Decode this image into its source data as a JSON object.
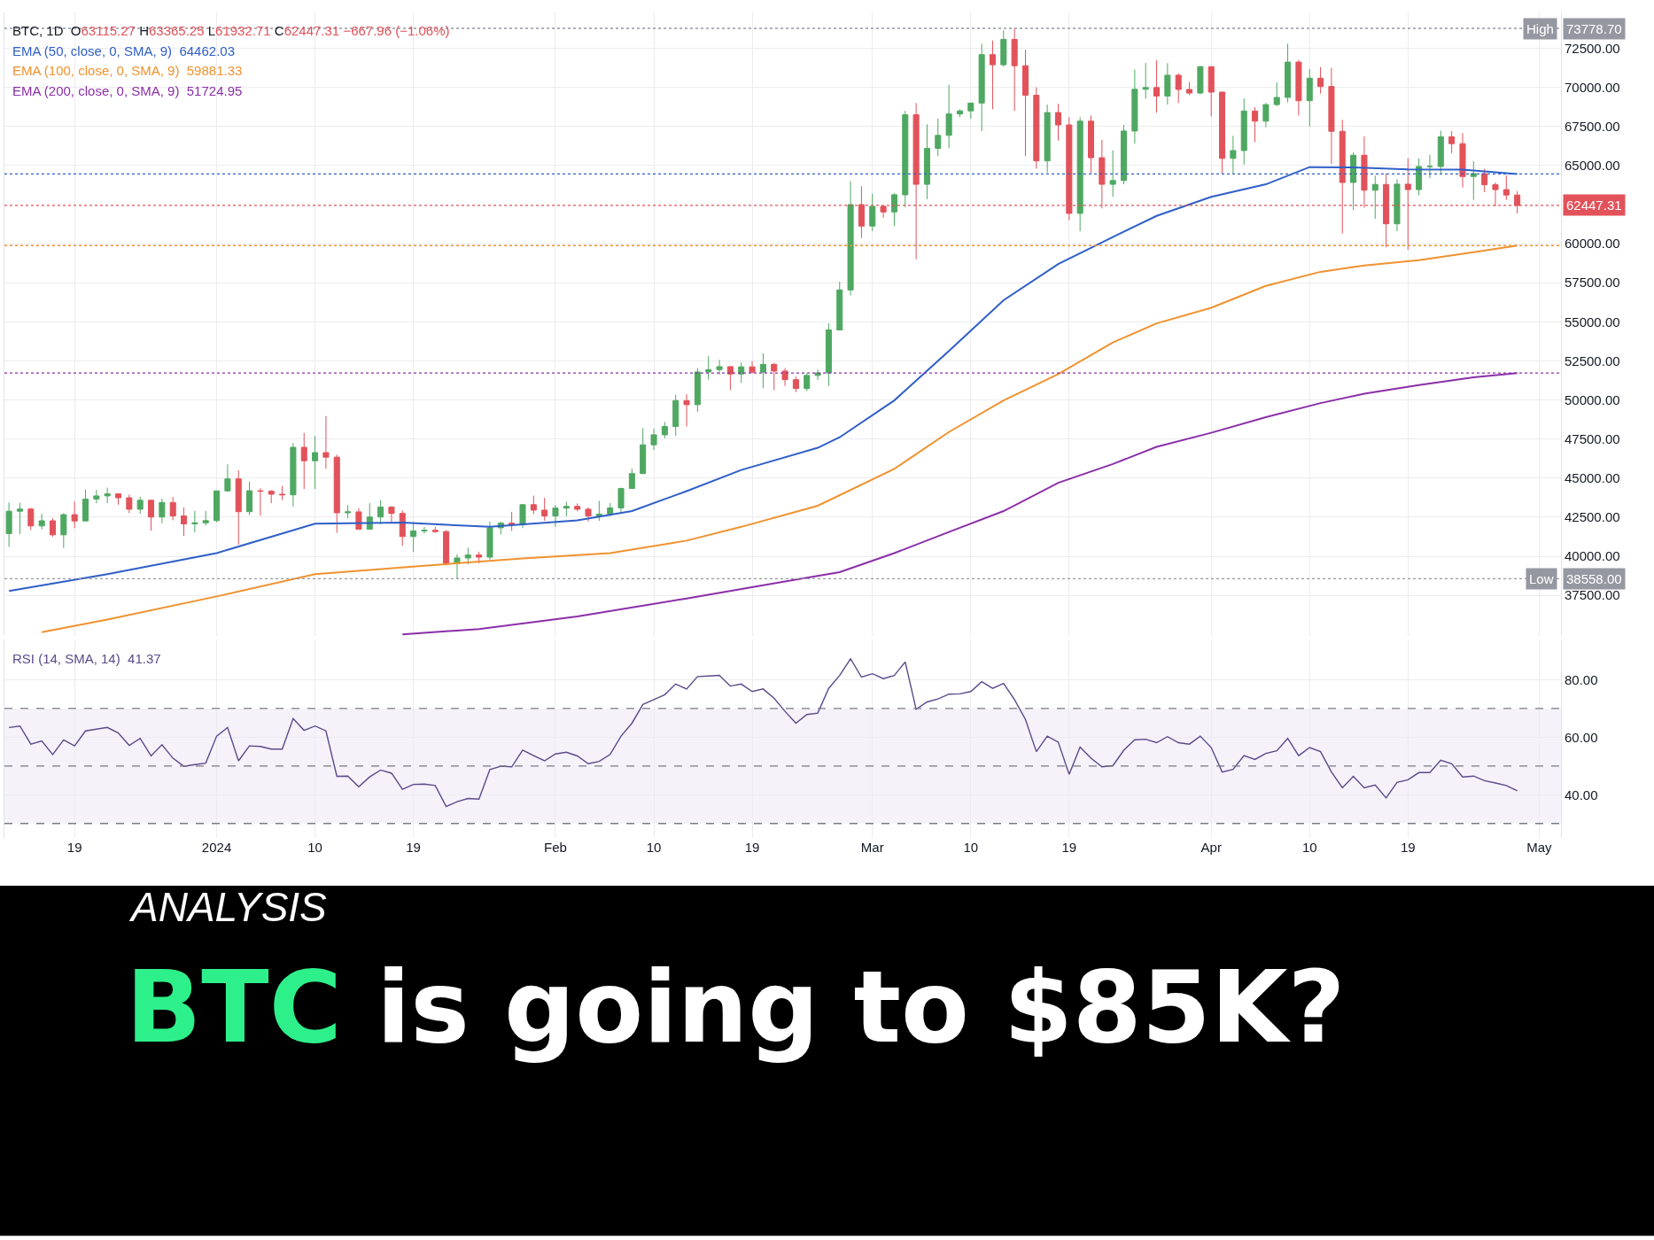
{
  "chart_data": [
    {
      "type": "candlestick",
      "x": [
        "2023-12-13",
        "2023-12-14",
        "2023-12-15",
        "2023-12-16",
        "2023-12-17",
        "2023-12-18",
        "2023-12-19",
        "2023-12-20",
        "2023-12-21",
        "2023-12-22",
        "2023-12-23",
        "2023-12-24",
        "2023-12-25",
        "2023-12-26",
        "2023-12-27",
        "2023-12-28",
        "2023-12-29",
        "2023-12-30",
        "2023-12-31",
        "2024-01-01",
        "2024-01-02",
        "2024-01-03",
        "2024-01-04",
        "2024-01-05",
        "2024-01-06",
        "2024-01-07",
        "2024-01-08",
        "2024-01-09",
        "2024-01-10",
        "2024-01-11",
        "2024-01-12",
        "2024-01-13",
        "2024-01-14",
        "2024-01-15",
        "2024-01-16",
        "2024-01-17",
        "2024-01-18",
        "2024-01-19",
        "2024-01-20",
        "2024-01-21",
        "2024-01-22",
        "2024-01-23",
        "2024-01-24",
        "2024-01-25",
        "2024-01-26",
        "2024-01-27",
        "2024-01-28",
        "2024-01-29",
        "2024-01-30",
        "2024-01-31",
        "2024-02-01",
        "2024-02-02",
        "2024-02-03",
        "2024-02-04",
        "2024-02-05",
        "2024-02-06",
        "2024-02-07",
        "2024-02-08",
        "2024-02-09",
        "2024-02-10",
        "2024-02-11",
        "2024-02-12",
        "2024-02-13",
        "2024-02-14",
        "2024-02-15",
        "2024-02-16",
        "2024-02-17",
        "2024-02-18",
        "2024-02-19",
        "2024-02-20",
        "2024-02-21",
        "2024-02-22",
        "2024-02-23",
        "2024-02-24",
        "2024-02-25",
        "2024-02-26",
        "2024-02-27",
        "2024-02-28",
        "2024-02-29",
        "2024-03-01",
        "2024-03-02",
        "2024-03-03",
        "2024-03-04",
        "2024-03-05",
        "2024-03-06",
        "2024-03-07",
        "2024-03-08",
        "2024-03-09",
        "2024-03-10",
        "2024-03-11",
        "2024-03-12",
        "2024-03-13",
        "2024-03-14",
        "2024-03-15",
        "2024-03-16",
        "2024-03-17",
        "2024-03-18",
        "2024-03-19",
        "2024-03-20",
        "2024-03-21",
        "2024-03-22",
        "2024-03-23",
        "2024-03-24",
        "2024-03-25",
        "2024-03-26",
        "2024-03-27",
        "2024-03-28",
        "2024-03-29",
        "2024-03-30",
        "2024-03-31",
        "2024-04-01",
        "2024-04-02",
        "2024-04-03",
        "2024-04-04",
        "2024-04-05",
        "2024-04-06",
        "2024-04-07",
        "2024-04-08",
        "2024-04-09",
        "2024-04-10",
        "2024-04-11",
        "2024-04-12",
        "2024-04-13",
        "2024-04-14",
        "2024-04-15",
        "2024-04-16",
        "2024-04-17",
        "2024-04-18",
        "2024-04-19",
        "2024-04-20",
        "2024-04-21",
        "2024-04-22",
        "2024-04-23",
        "2024-04-24",
        "2024-04-25",
        "2024-04-26",
        "2024-04-27",
        "2024-04-28",
        "2024-04-29"
      ],
      "series": [
        {
          "type": "candlestick",
          "name": "BTC, 1D",
          "ohlc": [
            [
              41450,
              43430,
              40600,
              42880
            ],
            [
              42880,
              43420,
              41420,
              43020
            ],
            [
              43020,
              43090,
              41670,
              41940
            ],
            [
              41940,
              42720,
              41720,
              42270
            ],
            [
              42270,
              42430,
              41250,
              41370
            ],
            [
              41370,
              42760,
              40530,
              42660
            ],
            [
              42660,
              43500,
              41800,
              42260
            ],
            [
              42260,
              44280,
              42220,
              43660
            ],
            [
              43660,
              44240,
              43390,
              43860
            ],
            [
              43860,
              44390,
              43400,
              43990
            ],
            [
              43990,
              44030,
              43300,
              43740
            ],
            [
              43740,
              43950,
              42760,
              43010
            ],
            [
              43010,
              43800,
              42720,
              43580
            ],
            [
              43580,
              43600,
              41640,
              42510
            ],
            [
              42510,
              43680,
              42100,
              43440
            ],
            [
              43440,
              43800,
              42300,
              42580
            ],
            [
              42580,
              43120,
              41300,
              42070
            ],
            [
              42070,
              42900,
              41520,
              42140
            ],
            [
              42140,
              42900,
              41960,
              42280
            ],
            [
              42280,
              44180,
              42180,
              44180
            ],
            [
              44180,
              45880,
              44150,
              44950
            ],
            [
              44950,
              45500,
              40750,
              42850
            ],
            [
              42850,
              44770,
              42630,
              44190
            ],
            [
              44190,
              44350,
              42600,
              44160
            ],
            [
              44160,
              44230,
              43400,
              43970
            ],
            [
              43970,
              44500,
              43600,
              43930
            ],
            [
              43930,
              47250,
              43180,
              46970
            ],
            [
              46970,
              47900,
              44300,
              46110
            ],
            [
              46110,
              47700,
              44300,
              46630
            ],
            [
              46630,
              48970,
              45600,
              46340
            ],
            [
              46340,
              46500,
              41500,
              42780
            ],
            [
              42780,
              43260,
              42440,
              42840
            ],
            [
              42840,
              43080,
              41720,
              41730
            ],
            [
              41730,
              43400,
              41720,
              42510
            ],
            [
              42510,
              43580,
              42050,
              43150
            ],
            [
              43150,
              43200,
              42200,
              42740
            ],
            [
              42740,
              42930,
              40680,
              41260
            ],
            [
              41260,
              42200,
              40280,
              41620
            ],
            [
              41620,
              41870,
              41450,
              41660
            ],
            [
              41660,
              41880,
              41500,
              41580
            ],
            [
              41580,
              41670,
              39400,
              39530
            ],
            [
              39530,
              40130,
              38558.0,
              39890
            ],
            [
              39890,
              40550,
              39480,
              40080
            ],
            [
              40080,
              40290,
              39550,
              39940
            ],
            [
              39940,
              42220,
              39780,
              41820
            ],
            [
              41820,
              42200,
              41400,
              42120
            ],
            [
              42120,
              42840,
              41620,
              42030
            ],
            [
              42030,
              43300,
              41800,
              43300
            ],
            [
              43300,
              43880,
              42680,
              42950
            ],
            [
              42950,
              43740,
              42270,
              42580
            ],
            [
              42580,
              43280,
              41880,
              43080
            ],
            [
              43080,
              43490,
              42560,
              43190
            ],
            [
              43190,
              43380,
              42880,
              43010
            ],
            [
              43010,
              43120,
              42220,
              42580
            ],
            [
              42580,
              43540,
              42260,
              42700
            ],
            [
              42700,
              43400,
              42570,
              43090
            ],
            [
              43090,
              44380,
              42780,
              44340
            ],
            [
              44340,
              45600,
              44330,
              45290
            ],
            [
              45290,
              48200,
              45250,
              47130
            ],
            [
              47130,
              48170,
              46800,
              47770
            ],
            [
              47770,
              48590,
              47550,
              48300
            ],
            [
              48300,
              50330,
              47700,
              49960
            ],
            [
              49960,
              50370,
              48300,
              49700
            ],
            [
              49700,
              52040,
              49250,
              51790
            ],
            [
              51790,
              52820,
              51300,
              51940
            ],
            [
              51940,
              52570,
              51620,
              52130
            ],
            [
              52130,
              52160,
              50630,
              51660
            ],
            [
              51660,
              52400,
              51100,
              52120
            ],
            [
              52120,
              52480,
              51700,
              51780
            ],
            [
              51780,
              52980,
              50750,
              52280
            ],
            [
              52280,
              52370,
              50630,
              51850
            ],
            [
              51850,
              52040,
              50900,
              51300
            ],
            [
              51300,
              51500,
              50500,
              50730
            ],
            [
              50730,
              51700,
              50570,
              51570
            ],
            [
              51570,
              51950,
              51280,
              51730
            ],
            [
              51730,
              54900,
              50900,
              54480
            ],
            [
              54480,
              57570,
              54450,
              57040
            ],
            [
              57040,
              64000,
              56700,
              62500
            ],
            [
              62500,
              63680,
              60360,
              61130
            ],
            [
              61130,
              63200,
              60800,
              62390
            ],
            [
              62390,
              62450,
              61650,
              62030
            ],
            [
              62030,
              63230,
              61130,
              63130
            ],
            [
              63130,
              68500,
              62330,
              68250
            ],
            [
              68250,
              69000,
              59000,
              63800
            ],
            [
              63800,
              67640,
              62850,
              66100
            ],
            [
              66100,
              68000,
              65600,
              66930
            ],
            [
              66930,
              70170,
              66100,
              68300
            ],
            [
              68300,
              68600,
              68100,
              68500
            ],
            [
              68500,
              69000,
              68000,
              69000
            ],
            [
              69000,
              72800,
              67200,
              72100
            ],
            [
              72100,
              73000,
              68600,
              71450
            ],
            [
              71450,
              73650,
              71330,
              73070
            ],
            [
              73070,
              73778.7,
              68500,
              71390
            ],
            [
              71390,
              72400,
              65600,
              69500
            ],
            [
              69500,
              70000,
              64800,
              65300
            ],
            [
              65300,
              68900,
              64550,
              68390
            ],
            [
              68390,
              68950,
              66600,
              67600
            ],
            [
              67600,
              68100,
              61500,
              61940
            ],
            [
              61940,
              68100,
              60800,
              67840
            ],
            [
              67840,
              68200,
              64500,
              65500
            ],
            [
              65500,
              66650,
              62260,
              63800
            ],
            [
              63800,
              65980,
              63000,
              64040
            ],
            [
              64040,
              67600,
              63800,
              67210
            ],
            [
              67210,
              71150,
              66400,
              69880
            ],
            [
              69880,
              71560,
              69280,
              69990
            ],
            [
              69990,
              71730,
              68380,
              69450
            ],
            [
              69450,
              71550,
              68900,
              70780
            ],
            [
              70780,
              70900,
              69000,
              69870
            ],
            [
              69870,
              70350,
              69500,
              69640
            ],
            [
              69640,
              71370,
              69560,
              71330
            ],
            [
              71330,
              71330,
              68150,
              69700
            ],
            [
              69700,
              69700,
              64500,
              65460
            ],
            [
              65460,
              66900,
              64500,
              65960
            ],
            [
              65960,
              69300,
              65060,
              68490
            ],
            [
              68490,
              68730,
              66500,
              67840
            ],
            [
              67840,
              69000,
              67450,
              68900
            ],
            [
              68900,
              70320,
              68800,
              69360
            ],
            [
              69360,
              72800,
              69040,
              71620
            ],
            [
              71620,
              71760,
              68200,
              69150
            ],
            [
              69150,
              71170,
              67500,
              70590
            ],
            [
              70590,
              71300,
              69600,
              70060
            ],
            [
              70060,
              71250,
              65100,
              67190
            ],
            [
              67190,
              67930,
              60660,
              63920
            ],
            [
              63920,
              65840,
              62150,
              65660
            ],
            [
              65660,
              66870,
              62300,
              63420
            ],
            [
              63420,
              64360,
              61600,
              63790
            ],
            [
              63790,
              64480,
              59770,
              61270
            ],
            [
              61270,
              64130,
              60800,
              63810
            ],
            [
              63810,
              65480,
              59600,
              63460
            ],
            [
              63460,
              65450,
              63100,
              64940
            ],
            [
              64940,
              65700,
              64200,
              64940
            ],
            [
              64940,
              67230,
              64500,
              66840
            ],
            [
              66840,
              67200,
              65800,
              66400
            ],
            [
              66400,
              67070,
              63600,
              64300
            ],
            [
              64300,
              65290,
              62800,
              64480
            ],
            [
              64480,
              64800,
              63300,
              63770
            ],
            [
              63770,
              63920,
              62400,
              63460
            ],
            [
              63460,
              64370,
              62800,
              63115.27
            ],
            [
              63115.27,
              63365.25,
              61932.71,
              62447.31
            ]
          ]
        },
        {
          "type": "line",
          "name": "EMA (50, close, 0, SMA, 9)",
          "color": "#2f5fc8",
          "x": [
            "2023-12-13",
            "2023-12-22",
            "2024-01-01",
            "2024-01-10",
            "2024-01-18",
            "2024-01-26",
            "2024-02-03",
            "2024-02-08",
            "2024-02-13",
            "2024-02-18",
            "2024-02-25",
            "2024-02-27",
            "2024-03-03",
            "2024-03-08",
            "2024-03-13",
            "2024-03-18",
            "2024-03-23",
            "2024-03-27",
            "2024-04-01",
            "2024-04-06",
            "2024-04-10",
            "2024-04-14",
            "2024-04-19",
            "2024-04-24",
            "2024-04-29"
          ],
          "values": [
            37770,
            38850,
            40200,
            42080,
            42150,
            41880,
            42290,
            42890,
            44170,
            45520,
            46940,
            47610,
            49970,
            53140,
            56380,
            58700,
            60430,
            61780,
            63000,
            63800,
            64900,
            64880,
            64750,
            64740,
            64460
          ]
        },
        {
          "type": "line",
          "name": "EMA (100, close, 0, SMA, 9)",
          "color": "#f0922f",
          "x": [
            "2023-12-16",
            "2023-12-22",
            "2024-01-01",
            "2024-01-10",
            "2024-01-20",
            "2024-01-29",
            "2024-02-06",
            "2024-02-13",
            "2024-02-18",
            "2024-02-25",
            "2024-03-03",
            "2024-03-08",
            "2024-03-13",
            "2024-03-18",
            "2024-03-23",
            "2024-03-27",
            "2024-04-01",
            "2024-04-06",
            "2024-04-11",
            "2024-04-15",
            "2024-04-20",
            "2024-04-25",
            "2024-04-29"
          ],
          "values": [
            35140,
            35950,
            37430,
            38850,
            39390,
            39860,
            40200,
            41000,
            41880,
            43230,
            45590,
            47950,
            49970,
            51660,
            53680,
            54900,
            55900,
            57300,
            58200,
            58600,
            58950,
            59450,
            59880
          ]
        },
        {
          "type": "line",
          "name": "EMA (200, close, 0, SMA, 9)",
          "color": "#8b2fa8",
          "x": [
            "2024-01-18",
            "2024-01-25",
            "2024-02-03",
            "2024-02-13",
            "2024-02-22",
            "2024-02-27",
            "2024-03-03",
            "2024-03-08",
            "2024-03-13",
            "2024-03-18",
            "2024-03-23",
            "2024-03-27",
            "2024-04-01",
            "2024-04-06",
            "2024-04-11",
            "2024-04-15",
            "2024-04-20",
            "2024-04-25",
            "2024-04-29"
          ],
          "values": [
            35000,
            35340,
            36150,
            37300,
            38380,
            38980,
            40200,
            41550,
            42890,
            44700,
            45900,
            47000,
            47900,
            48900,
            49800,
            50400,
            50950,
            51450,
            51720
          ]
        }
      ],
      "xlim": [
        "2023-12-12T14:00",
        "2024-05-03"
      ],
      "xticks": [
        {
          "value": "2023-12-19",
          "label": null
        },
        {
          "value": "2024-01-01",
          "label": null
        },
        {
          "value": "2024-01-10",
          "label": null
        },
        {
          "value": "2024-01-19",
          "label": null
        },
        {
          "value": "2024-02-01",
          "label": null
        },
        {
          "value": "2024-02-10",
          "label": null
        },
        {
          "value": "2024-02-19",
          "label": null
        },
        {
          "value": "2024-03-01",
          "label": null
        },
        {
          "value": "2024-03-10",
          "label": null
        },
        {
          "value": "2024-03-19",
          "label": null
        },
        {
          "value": "2024-04-01",
          "label": null
        },
        {
          "value": "2024-04-10",
          "label": null
        },
        {
          "value": "2024-04-19",
          "label": null
        },
        {
          "value": "2024-05-01",
          "label": null
        }
      ],
      "ylim": [
        34900,
        74800
      ],
      "yticks": [
        {
          "value": 37500,
          "label": "37500.00"
        },
        {
          "value": 40000,
          "label": "40000.00"
        },
        {
          "value": 42500,
          "label": "42500.00"
        },
        {
          "value": 45000,
          "label": "45000.00"
        },
        {
          "value": 47500,
          "label": "47500.00"
        },
        {
          "value": 50000,
          "label": "50000.00"
        },
        {
          "value": 52500,
          "label": "52500.00"
        },
        {
          "value": 55000,
          "label": "55000.00"
        },
        {
          "value": 57500,
          "label": "57500.00"
        },
        {
          "value": 60000,
          "label": "60000.00"
        },
        {
          "value": 65000,
          "label": "65000.00"
        },
        {
          "value": 67500,
          "label": "67500.00"
        },
        {
          "value": 70000,
          "label": "70000.00"
        },
        {
          "value": 72500,
          "label": "72500.00"
        }
      ],
      "ref_lines": [
        {
          "axis": "y",
          "value": 73778.7,
          "label": "High 73778.70",
          "color": "#9598a1",
          "line_style": "dotted"
        },
        {
          "axis": "y",
          "value": 64462.03,
          "color": "#2f5fc8",
          "line_style": "dotted"
        },
        {
          "axis": "y",
          "value": 62447.31,
          "label": "62447.31",
          "color": "#e2525a",
          "line_style": "dotted"
        },
        {
          "axis": "y",
          "value": 59881.33,
          "color": "#f0922f",
          "line_style": "dotted"
        },
        {
          "axis": "y",
          "value": 51724.95,
          "color": "#8b2fa8",
          "line_style": "dotted"
        },
        {
          "axis": "y",
          "value": 38558.0,
          "label": "Low 38558.00",
          "color": "#9598a1",
          "line_style": "dotted"
        }
      ],
      "annotations": [
        "O63115.27 H63365.25 L61932.71 C62447.31 −667.96 (−1.06%)",
        "64462.03",
        "59881.33",
        "51724.95"
      ],
      "grid": true,
      "tick_labels": "y",
      "line_style": "solid"
    },
    {
      "type": "line",
      "x": [
        "2023-12-13",
        "2023-12-14",
        "2023-12-15",
        "2023-12-16",
        "2023-12-17",
        "2023-12-18",
        "2023-12-19",
        "2023-12-20",
        "2023-12-21",
        "2023-12-22",
        "2023-12-23",
        "2023-12-24",
        "2023-12-25",
        "2023-12-26",
        "2023-12-27",
        "2023-12-28",
        "2023-12-29",
        "2023-12-30",
        "2023-12-31",
        "2024-01-01",
        "2024-01-02",
        "2024-01-03",
        "2024-01-04",
        "2024-01-05",
        "2024-01-06",
        "2024-01-07",
        "2024-01-08",
        "2024-01-09",
        "2024-01-10",
        "2024-01-11",
        "2024-01-12",
        "2024-01-13",
        "2024-01-14",
        "2024-01-15",
        "2024-01-16",
        "2024-01-17",
        "2024-01-18",
        "2024-01-19",
        "2024-01-20",
        "2024-01-21",
        "2024-01-22",
        "2024-01-23",
        "2024-01-24",
        "2024-01-25",
        "2024-01-26",
        "2024-01-27",
        "2024-01-28",
        "2024-01-29",
        "2024-01-30",
        "2024-01-31",
        "2024-02-01",
        "2024-02-02",
        "2024-02-03",
        "2024-02-04",
        "2024-02-05",
        "2024-02-06",
        "2024-02-07",
        "2024-02-08",
        "2024-02-09",
        "2024-02-10",
        "2024-02-11",
        "2024-02-12",
        "2024-02-13",
        "2024-02-14",
        "2024-02-15",
        "2024-02-16",
        "2024-02-17",
        "2024-02-18",
        "2024-02-19",
        "2024-02-20",
        "2024-02-21",
        "2024-02-22",
        "2024-02-23",
        "2024-02-24",
        "2024-02-25",
        "2024-02-26",
        "2024-02-27",
        "2024-02-28",
        "2024-02-29",
        "2024-03-01",
        "2024-03-02",
        "2024-03-03",
        "2024-03-04",
        "2024-03-05",
        "2024-03-06",
        "2024-03-07",
        "2024-03-08",
        "2024-03-09",
        "2024-03-10",
        "2024-03-11",
        "2024-03-12",
        "2024-03-13",
        "2024-03-14",
        "2024-03-15",
        "2024-03-16",
        "2024-03-17",
        "2024-03-18",
        "2024-03-19",
        "2024-03-20",
        "2024-03-21",
        "2024-03-22",
        "2024-03-23",
        "2024-03-24",
        "2024-03-25",
        "2024-03-26",
        "2024-03-27",
        "2024-03-28",
        "2024-03-29",
        "2024-03-30",
        "2024-03-31",
        "2024-04-01",
        "2024-04-02",
        "2024-04-03",
        "2024-04-04",
        "2024-04-05",
        "2024-04-06",
        "2024-04-07",
        "2024-04-08",
        "2024-04-09",
        "2024-04-10",
        "2024-04-11",
        "2024-04-12",
        "2024-04-13",
        "2024-04-14",
        "2024-04-15",
        "2024-04-16",
        "2024-04-17",
        "2024-04-18",
        "2024-04-19",
        "2024-04-20",
        "2024-04-21",
        "2024-04-22",
        "2024-04-23",
        "2024-04-24",
        "2024-04-25",
        "2024-04-26",
        "2024-04-27",
        "2024-04-28",
        "2024-04-29"
      ],
      "series": [
        {
          "name": "RSI (14, SMA, 14)",
          "color": "#5b4a8a",
          "values": [
            63.4,
            63.9,
            57.6,
            58.7,
            54.0,
            59.1,
            57.0,
            62.2,
            62.8,
            63.4,
            61.5,
            57.2,
            59.6,
            53.5,
            57.4,
            52.7,
            49.9,
            50.5,
            51.0,
            60.4,
            63.4,
            51.8,
            57.0,
            56.8,
            55.9,
            55.9,
            66.5,
            62.4,
            63.9,
            62.2,
            46.4,
            46.5,
            42.8,
            46.2,
            48.6,
            47.5,
            41.9,
            43.6,
            43.7,
            43.2,
            35.9,
            37.6,
            38.7,
            38.5,
            48.8,
            49.9,
            49.7,
            55.5,
            53.6,
            51.8,
            54.2,
            54.8,
            53.5,
            50.8,
            51.6,
            54.0,
            60.4,
            64.9,
            71.4,
            73.1,
            74.8,
            78.5,
            76.8,
            81.1,
            81.3,
            81.5,
            77.8,
            78.5,
            75.9,
            76.8,
            73.6,
            69.0,
            64.9,
            67.9,
            68.4,
            77.0,
            81.5,
            87.3,
            80.9,
            82.1,
            80.4,
            81.5,
            86.2,
            69.7,
            72.3,
            73.3,
            75.0,
            75.1,
            75.9,
            79.3,
            77.0,
            78.7,
            73.1,
            66.2,
            55.0,
            60.4,
            58.3,
            47.1,
            56.6,
            52.7,
            49.7,
            50.1,
            55.5,
            59.1,
            59.3,
            58.1,
            60.2,
            58.1,
            57.6,
            60.4,
            56.4,
            47.9,
            48.8,
            53.6,
            52.3,
            54.4,
            55.3,
            59.6,
            53.6,
            56.4,
            55.0,
            47.9,
            42.4,
            46.4,
            42.4,
            43.4,
            38.9,
            44.3,
            45.2,
            47.7,
            47.7,
            52.0,
            50.8,
            46.2,
            46.5,
            44.9,
            44.1,
            43.2,
            41.4
          ]
        }
      ],
      "xlim": [
        "2023-12-12T14:00",
        "2024-05-03"
      ],
      "xticks": [
        {
          "value": "2023-12-19",
          "label": "19"
        },
        {
          "value": "2024-01-01",
          "label": "2024"
        },
        {
          "value": "2024-01-10",
          "label": "10"
        },
        {
          "value": "2024-01-19",
          "label": "19"
        },
        {
          "value": "2024-02-01",
          "label": "Feb"
        },
        {
          "value": "2024-02-10",
          "label": "10"
        },
        {
          "value": "2024-02-19",
          "label": "19"
        },
        {
          "value": "2024-03-01",
          "label": "Mar"
        },
        {
          "value": "2024-03-10",
          "label": "10"
        },
        {
          "value": "2024-03-19",
          "label": "19"
        },
        {
          "value": "2024-04-01",
          "label": "Apr"
        },
        {
          "value": "2024-04-10",
          "label": "10"
        },
        {
          "value": "2024-04-19",
          "label": "19"
        },
        {
          "value": "2024-05-01",
          "label": "May"
        }
      ],
      "ylim": [
        25,
        94
      ],
      "yticks": [
        {
          "value": 40,
          "label": "40.00"
        },
        {
          "value": 60,
          "label": "60.00"
        },
        {
          "value": 80,
          "label": "80.00"
        }
      ],
      "ref_lines": [
        {
          "axis": "y",
          "value": 70,
          "color": "#787b86",
          "line_style": "dashed"
        },
        {
          "axis": "y",
          "value": 50,
          "color": "#787b86",
          "line_style": "dashed"
        },
        {
          "axis": "y",
          "value": 30,
          "color": "#787b86",
          "line_style": "dashed"
        }
      ],
      "bands": [
        {
          "axis": "y",
          "from": 30,
          "to": 70,
          "color": "#7e57c2"
        }
      ],
      "annotations": [
        "41.37"
      ],
      "grid": true,
      "line_style": "solid",
      "subtitle": "ANALYSIS",
      "title": "BTC is going to $85K?"
    }
  ]
}
